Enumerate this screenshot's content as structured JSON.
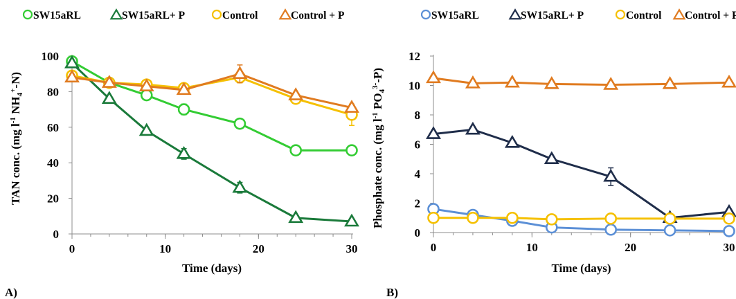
{
  "colors": {
    "light_green": "#33cc33",
    "dark_green": "#1a7a3a",
    "yellow": "#f5c000",
    "orange": "#e07b20",
    "light_blue": "#5b8fd6",
    "navy": "#1f2d4a"
  },
  "chart_data": [
    {
      "type": "line",
      "panel_label": "A)",
      "xlabel": "Time (days)",
      "ylabel": "TAN conc. (mg l-1 NH4+-N)",
      "xlim": [
        0,
        30
      ],
      "ylim": [
        0,
        100
      ],
      "xticks": [
        0,
        10,
        20,
        30
      ],
      "yticks": [
        0,
        20,
        40,
        60,
        80,
        100
      ],
      "grid": false,
      "legend_position": "top",
      "series": [
        {
          "name": "SW15aRL",
          "marker": "circle",
          "color": "#33cc33",
          "x": [
            0,
            4,
            8,
            12,
            18,
            24,
            30
          ],
          "y": [
            97,
            85,
            78,
            70,
            62,
            47,
            47
          ],
          "err": [
            0,
            0,
            0,
            3,
            0,
            0,
            0
          ]
        },
        {
          "name": "SW15aRL+ P",
          "marker": "triangle",
          "color": "#1a7a3a",
          "x": [
            0,
            4,
            8,
            12,
            18,
            24,
            30
          ],
          "y": [
            96,
            76,
            58,
            45,
            26,
            9,
            7
          ],
          "err": [
            0,
            0,
            0,
            3,
            3,
            0,
            0
          ]
        },
        {
          "name": "Control",
          "marker": "circle",
          "color": "#f5c000",
          "x": [
            0,
            4,
            8,
            12,
            18,
            24,
            30
          ],
          "y": [
            89,
            85,
            84,
            82,
            88,
            76,
            67
          ],
          "err": [
            0,
            0,
            0,
            0,
            3,
            0,
            6
          ]
        },
        {
          "name": "Control + P",
          "marker": "triangle",
          "color": "#e07b20",
          "x": [
            0,
            4,
            8,
            12,
            18,
            24,
            30
          ],
          "y": [
            88,
            85,
            83,
            81,
            90,
            78,
            71
          ],
          "err": [
            0,
            0,
            0,
            0,
            5,
            0,
            0
          ]
        }
      ]
    },
    {
      "type": "line",
      "panel_label": "B)",
      "xlabel": "Time (days)",
      "ylabel": "Phosphate conc. (mg l-1 PO43--P)",
      "xlim": [
        0,
        30
      ],
      "ylim": [
        0,
        12
      ],
      "xticks": [
        0,
        10,
        20,
        30
      ],
      "yticks": [
        0,
        2,
        4,
        6,
        8,
        10,
        12
      ],
      "grid": false,
      "legend_position": "top",
      "series": [
        {
          "name": "SW15aRL",
          "marker": "circle",
          "color": "#5b8fd6",
          "x": [
            0,
            4,
            8,
            12,
            18,
            24,
            30
          ],
          "y": [
            1.6,
            1.2,
            0.8,
            0.35,
            0.2,
            0.15,
            0.1
          ],
          "err": [
            0,
            0,
            0,
            0,
            0,
            0,
            0
          ]
        },
        {
          "name": "SW15aRL+ P",
          "marker": "triangle",
          "color": "#1f2d4a",
          "x": [
            0,
            4,
            8,
            12,
            18,
            24,
            30
          ],
          "y": [
            6.7,
            7.0,
            6.1,
            5.0,
            3.8,
            1.0,
            1.4
          ],
          "err": [
            0,
            0,
            0,
            0,
            0.6,
            0,
            0
          ]
        },
        {
          "name": "Control",
          "marker": "circle",
          "color": "#f5c000",
          "x": [
            0,
            4,
            8,
            12,
            18,
            24,
            30
          ],
          "y": [
            1.0,
            1.0,
            1.0,
            0.9,
            0.95,
            0.95,
            0.95
          ],
          "err": [
            0,
            0,
            0,
            0,
            0,
            0,
            0
          ]
        },
        {
          "name": "Control + P",
          "marker": "triangle",
          "color": "#e07b20",
          "x": [
            0,
            4,
            8,
            12,
            18,
            24,
            30
          ],
          "y": [
            10.5,
            10.15,
            10.2,
            10.1,
            10.05,
            10.1,
            10.2
          ],
          "err": [
            0,
            0,
            0,
            0,
            0,
            0,
            0
          ]
        }
      ]
    }
  ]
}
